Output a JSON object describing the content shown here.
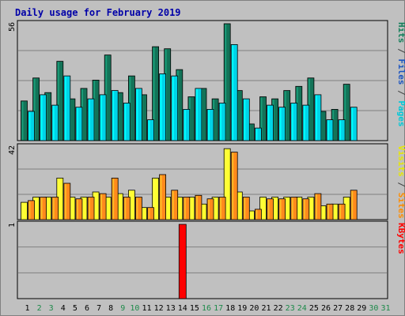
{
  "chart_data": {
    "type": "bar",
    "title": "Daily usage for February 2019",
    "days": [
      "1",
      "2",
      "3",
      "4",
      "5",
      "6",
      "7",
      "8",
      "9",
      "10",
      "11",
      "12",
      "13",
      "14",
      "15",
      "16",
      "17",
      "18",
      "19",
      "20",
      "21",
      "22",
      "23",
      "24",
      "25",
      "26",
      "27",
      "28",
      "29",
      "30",
      "31"
    ],
    "weekend_days": [
      "2",
      "3",
      "9",
      "10",
      "16",
      "17",
      "23",
      "24",
      "30",
      "31"
    ],
    "panels": [
      {
        "name": "hits-files-pages",
        "ymax_label": "56",
        "ylim": [
          0,
          56
        ],
        "right_labels": [
          {
            "text": "Pages",
            "color": "#00c8d8"
          },
          {
            "text": " / ",
            "color": "#404040"
          },
          {
            "text": "Files",
            "color": "#1b54c0"
          },
          {
            "text": " / ",
            "color": "#404040"
          },
          {
            "text": "Hits",
            "color": "#137f5a"
          }
        ],
        "series": [
          {
            "name": "Hits",
            "color": "#137358",
            "values": [
              19,
              30,
              23,
              38,
              20,
              25,
              29,
              41,
              23,
              31,
              22,
              45,
              44,
              34,
              21,
              25,
              20,
              56,
              24,
              8,
              21,
              20,
              24,
              26,
              30,
              14,
              15,
              27,
              0,
              0,
              0
            ]
          },
          {
            "name": "Pages",
            "color": "#00d4e8",
            "values": [
              14,
              22,
              17,
              31,
              16,
              20,
              22,
              24,
              18,
              25,
              10,
              32,
              31,
              15,
              25,
              15,
              18,
              46,
              20,
              6,
              17,
              16,
              18,
              17,
              22,
              10,
              10,
              16,
              0,
              0,
              0
            ]
          }
        ]
      },
      {
        "name": "visits-sites",
        "ymax_label": "42",
        "ylim": [
          0,
          42
        ],
        "right_labels": [
          {
            "text": "Sites",
            "color": "#ff8c00"
          },
          {
            "text": " / ",
            "color": "#404040"
          },
          {
            "text": "Visits",
            "color": "#e8e800"
          }
        ],
        "series": [
          {
            "name": "Visits",
            "color": "#ffff30",
            "values": [
              10,
              13,
              13,
              24,
              13,
              13,
              16,
              13,
              15,
              17,
              7,
              24,
              13,
              13,
              13,
              9,
              13,
              41,
              16,
              5,
              13,
              13,
              13,
              13,
              13,
              8,
              9,
              13,
              0,
              0,
              0
            ]
          },
          {
            "name": "Sites",
            "color": "#ff8a1c",
            "values": [
              11,
              13,
              13,
              21,
              12,
              13,
              15,
              24,
              13,
              13,
              7,
              26,
              17,
              13,
              14,
              12,
              13,
              39,
              13,
              6,
              12,
              12,
              13,
              12,
              15,
              9,
              9,
              17,
              0,
              0,
              0
            ]
          }
        ]
      },
      {
        "name": "kbytes",
        "ymax_label": "1",
        "ylim": [
          0,
          1
        ],
        "right_labels": [
          {
            "text": "KBytes",
            "color": "#ff0000"
          }
        ],
        "series": [
          {
            "name": "KBytes",
            "color": "#ff0000",
            "values": [
              0,
              0,
              0,
              0,
              0,
              0,
              0,
              0,
              0,
              0,
              0,
              0,
              0,
              1,
              0,
              0,
              0,
              0,
              0,
              0,
              0,
              0,
              0,
              0,
              0,
              0,
              0,
              0,
              0,
              0,
              0
            ]
          }
        ]
      }
    ]
  },
  "colors": {
    "background": "#c0c0c0",
    "title": "#0000a8",
    "weekday_label": "#000000",
    "weekend_label": "#1d8a4a",
    "grid": "#808080"
  }
}
